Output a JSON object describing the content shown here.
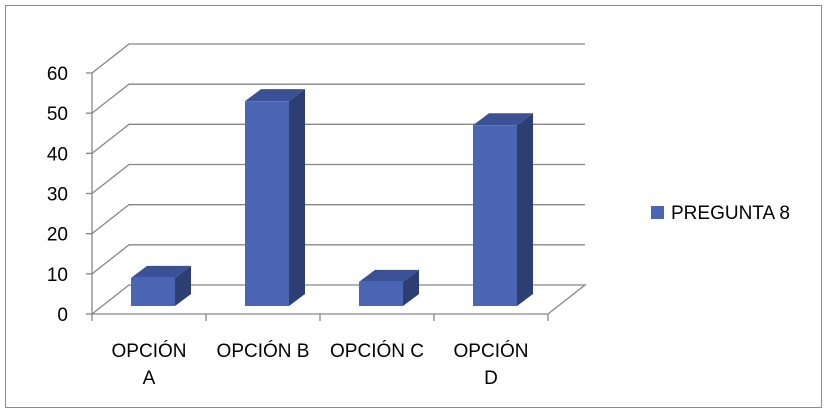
{
  "chart_data": {
    "type": "bar",
    "style": "3d-column",
    "categories": [
      "OPCIÓN A",
      "OPCIÓN B",
      "OPCIÓN C",
      "OPCIÓN D"
    ],
    "category_label_lines": [
      [
        "OPCIÓN",
        "A"
      ],
      [
        "OPCIÓN B"
      ],
      [
        "OPCIÓN C"
      ],
      [
        "OPCIÓN",
        "D"
      ]
    ],
    "series": [
      {
        "name": "PREGUNTA 8",
        "values": [
          7,
          51,
          6,
          45
        ]
      }
    ],
    "yticks": [
      "0",
      "10",
      "20",
      "30",
      "40",
      "50",
      "60"
    ],
    "ylim": [
      0,
      60
    ],
    "grid": true,
    "legend_position": "right",
    "colors": {
      "front": "#4a65b4",
      "side": "#2c3e72",
      "top": "#3b5196",
      "grid": "#868686"
    }
  }
}
